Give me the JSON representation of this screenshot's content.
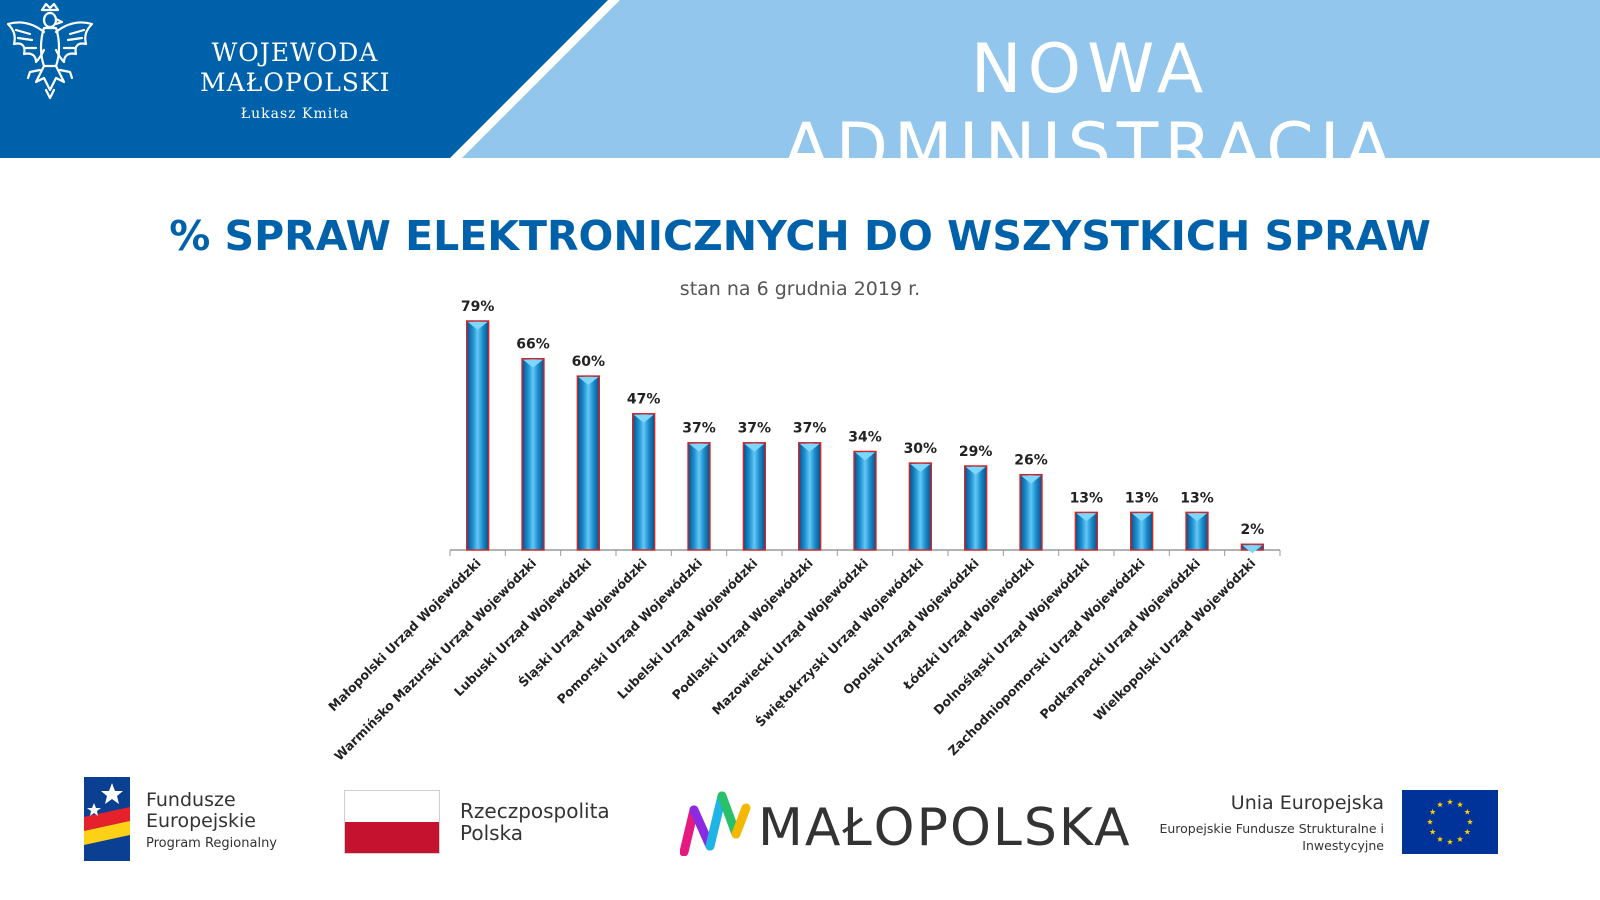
{
  "header": {
    "authority_line1": "WOJEWODA",
    "authority_line2": "MAŁOPOLSKI",
    "authority_person": "Łukasz Kmita",
    "campaign": "NOWA ADMINISTRACJA",
    "colors": {
      "dark_blue": "#0061ab",
      "light_blue": "#92c6ed"
    }
  },
  "chart_data": {
    "type": "bar",
    "title": "% SPRAW ELEKTRONICZNYCH DO WSZYSTKICH SPRAW",
    "subtitle": "stan na 6 grudnia 2019 r.",
    "xlabel": "",
    "ylabel": "",
    "ylim": [
      0,
      80
    ],
    "grid": false,
    "categories": [
      "Małopolski Urząd Wojewódzki",
      "Warmińsko Mazurski Urząd Wojewódzki",
      "Lubuski Urząd Wojewódzki",
      "Śląski Urząd Wojewódzki",
      "Pomorski Urząd Wojewódzki",
      "Lubelski Urząd Wojewódzki",
      "Podlaski Urząd Wojewódzki",
      "Mazowiecki Urząd Wojewódzki",
      "Świętokrzyski Urząd Wojewódzki",
      "Opolski Urząd Wojewódzki",
      "Łódzki Urząd Wojewódzki",
      "Dolnośląski Urząd Wojewódzki",
      "Zachodniopomorski Urząd Wojewódzki",
      "Podkarpacki Urząd Wojewódzki",
      "Wielkopolski Urząd Wojewódzki"
    ],
    "values": [
      79,
      66,
      60,
      47,
      37,
      37,
      37,
      34,
      30,
      29,
      26,
      13,
      13,
      13,
      2
    ],
    "data_labels": [
      "79%",
      "66%",
      "60%",
      "47%",
      "37%",
      "37%",
      "37%",
      "34%",
      "30%",
      "29%",
      "26%",
      "13%",
      "13%",
      "13%",
      "2%"
    ],
    "bar_color": "#1e9ad6",
    "bar_outline_color": "#e02020"
  },
  "footer": {
    "fe_title": "Fundusze Europejskie",
    "fe_sub": "Program Regionalny",
    "rp_title": "Rzeczpospolita Polska",
    "mp_word": "MAŁOPOLSKA",
    "ue_title": "Unia Europejska",
    "ue_sub": "Europejskie Fundusze Strukturalne i Inwestycyjne"
  }
}
